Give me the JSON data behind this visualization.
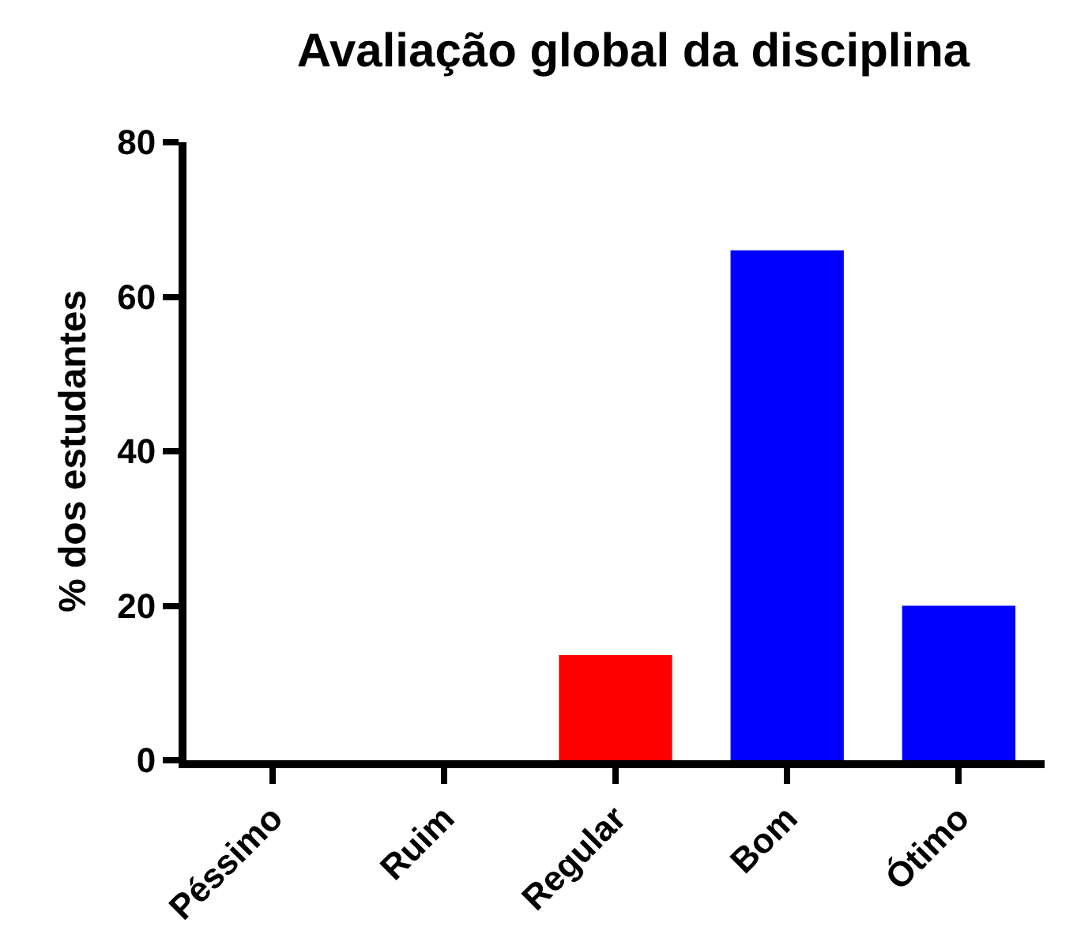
{
  "chart_data": {
    "type": "bar",
    "title": "Avaliação global da disciplina",
    "ylabel": "% dos estudantes",
    "categories": [
      "Péssimo",
      "Ruim",
      "Regular",
      "Bom",
      "Ótimo"
    ],
    "values": [
      0,
      0,
      13.6,
      66,
      20
    ],
    "colors": [
      "#0000ff",
      "#0000ff",
      "#ff0000",
      "#0000ff",
      "#0000ff"
    ],
    "ylim": [
      0,
      80
    ],
    "yticks": [
      0,
      20,
      40,
      60,
      80
    ],
    "grid": false
  }
}
